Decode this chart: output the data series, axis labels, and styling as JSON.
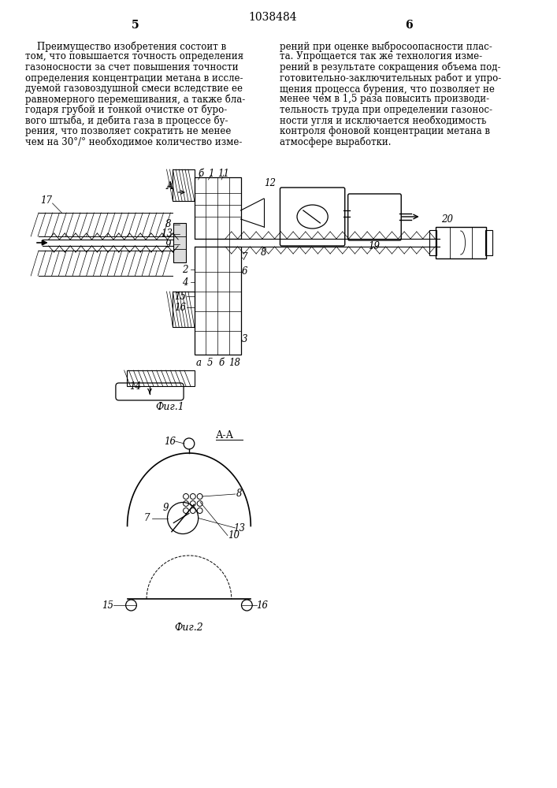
{
  "page_number_center": "1038484",
  "page_left": "5",
  "page_right": "6",
  "text_left": "    Преимущество изобретения состоит в\nтом, что повышается точность определения\nгазоносности за счет повышения точности\nопределения концентрации метана в иссле-\nдуемой газовоздушной смеси вследствие ее\nравномерного перемешивания, а также бла-\nгодаря грубой и тонкой очистке от буро-\nвого штыба, и дебита газа в процессе бу-\nрения, что позволяет сократить не менее\nчем на 30°/° необходимое количество изме-",
  "text_right": "рений при оценке выбросоопасности плас-\nта. Упрощается так же технология изме-\nрений в результате сокращения объема под-\nготовительно-заключительных работ и упро-\nщения процесса бурения, что позволяет не\nменее чем в 1,5 раза повысить производи-\nтельность труда при определении газонос-\nности угля и исключается необходимость\nконтроля фоновой концентрации метана в\nатмосфере выработки.",
  "fig1_caption": "Фиг.1",
  "fig2_caption": "Фиг.2",
  "background_color": "#ffffff",
  "text_color": "#000000",
  "line_color": "#000000",
  "fontsize_text": 8.5,
  "fontsize_page": 10,
  "fontsize_label": 8.5
}
